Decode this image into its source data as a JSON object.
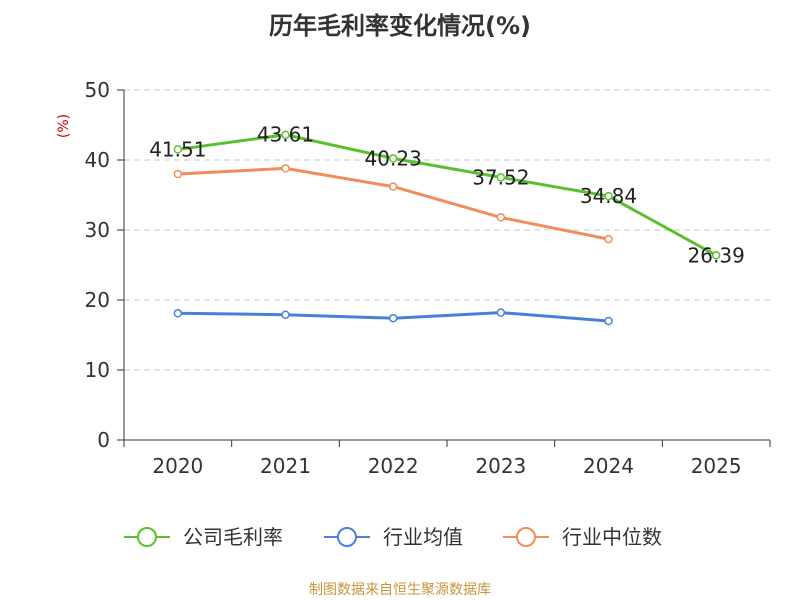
{
  "chart_data": {
    "type": "line",
    "title": "历年毛利率变化情况(%)",
    "ylabel": "(%)",
    "xlabel": "",
    "categories": [
      "2020",
      "2021",
      "2022",
      "2023",
      "2024",
      "2025"
    ],
    "ylim": [
      0,
      50
    ],
    "yticks": [
      0,
      10,
      20,
      30,
      40,
      50
    ],
    "grid": true,
    "legend_position": "bottom",
    "series": [
      {
        "name": "公司毛利率",
        "color": "#5ac02f",
        "values": [
          41.51,
          43.61,
          40.23,
          37.52,
          34.84,
          26.39
        ],
        "labels": [
          "41.51",
          "43.61",
          "40.23",
          "37.52",
          "34.84",
          "26.39"
        ]
      },
      {
        "name": "行业均值",
        "color": "#4a80d8",
        "values": [
          18.1,
          17.9,
          17.4,
          18.2,
          17.0,
          null
        ]
      },
      {
        "name": "行业中位数",
        "color": "#f28c5a",
        "values": [
          38.0,
          38.8,
          36.2,
          31.8,
          28.7,
          null
        ]
      }
    ],
    "source": "制图数据来自恒生聚源数据库"
  }
}
